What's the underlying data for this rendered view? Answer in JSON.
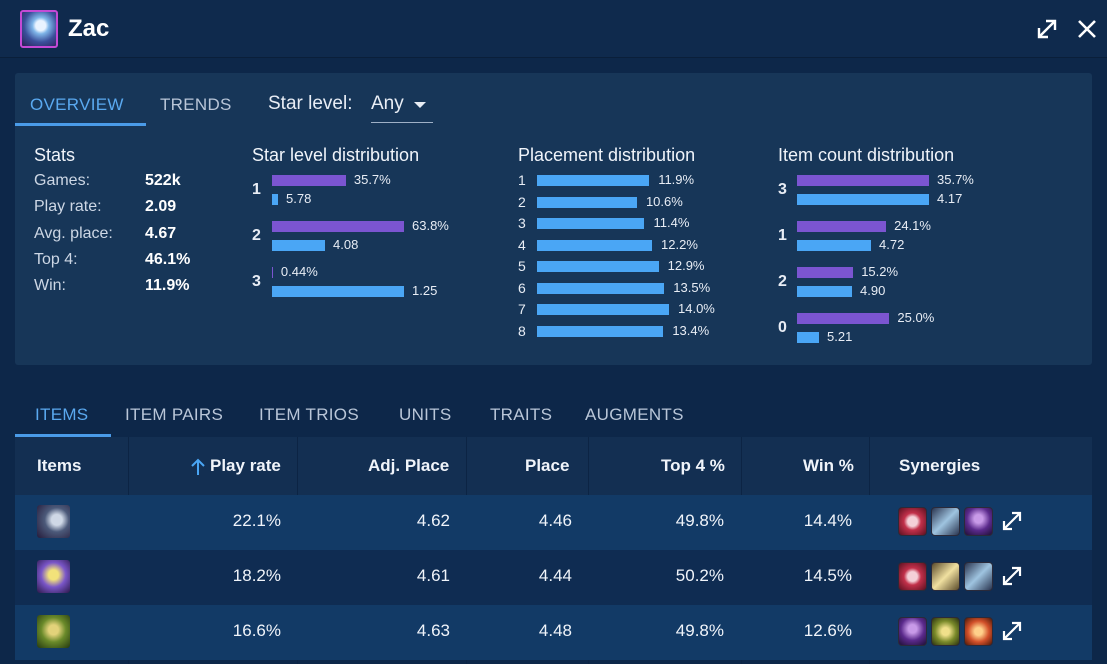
{
  "header": {
    "champion": "Zac",
    "expand_icon": "expand-icon",
    "close_icon": "close-icon"
  },
  "overview_tabs": [
    {
      "label": "OVERVIEW",
      "active": true
    },
    {
      "label": "TRENDS",
      "active": false
    }
  ],
  "star_filter": {
    "label": "Star level:",
    "value": "Any"
  },
  "stats": {
    "title": "Stats",
    "rows": [
      {
        "label": "Games:",
        "value": "522k"
      },
      {
        "label": "Play rate:",
        "value": "2.09"
      },
      {
        "label": "Avg. place:",
        "value": "4.67"
      },
      {
        "label": "Top 4:",
        "value": "46.1%"
      },
      {
        "label": "Win:",
        "value": "11.9%"
      }
    ]
  },
  "star_distribution": {
    "title": "Star level distribution",
    "groups": [
      {
        "label": "1",
        "share": 35.7,
        "share_label": "35.7%",
        "avg": 5.78,
        "avg_label": "5.78"
      },
      {
        "label": "2",
        "share": 63.8,
        "share_label": "63.8%",
        "avg": 4.08,
        "avg_label": "4.08"
      },
      {
        "label": "3",
        "share": 0.44,
        "share_label": "0.44%",
        "avg": 1.25,
        "avg_label": "1.25"
      }
    ]
  },
  "placement_distribution": {
    "title": "Placement distribution",
    "rows": [
      {
        "label": "1",
        "value": 11.9,
        "value_label": "11.9%"
      },
      {
        "label": "2",
        "value": 10.6,
        "value_label": "10.6%"
      },
      {
        "label": "3",
        "value": 11.4,
        "value_label": "11.4%"
      },
      {
        "label": "4",
        "value": 12.2,
        "value_label": "12.2%"
      },
      {
        "label": "5",
        "value": 12.9,
        "value_label": "12.9%"
      },
      {
        "label": "6",
        "value": 13.5,
        "value_label": "13.5%"
      },
      {
        "label": "7",
        "value": 14.0,
        "value_label": "14.0%"
      },
      {
        "label": "8",
        "value": 13.4,
        "value_label": "13.4%"
      }
    ]
  },
  "item_count_distribution": {
    "title": "Item count distribution",
    "groups": [
      {
        "label": "3",
        "share": 35.7,
        "share_label": "35.7%",
        "avg": 4.17,
        "avg_label": "4.17"
      },
      {
        "label": "1",
        "share": 24.1,
        "share_label": "24.1%",
        "avg": 4.72,
        "avg_label": "4.72"
      },
      {
        "label": "2",
        "share": 15.2,
        "share_label": "15.2%",
        "avg": 4.9,
        "avg_label": "4.90"
      },
      {
        "label": "0",
        "share": 25.0,
        "share_label": "25.0%",
        "avg": 5.21,
        "avg_label": "5.21"
      }
    ]
  },
  "bottom_tabs": [
    {
      "label": "ITEMS",
      "active": true
    },
    {
      "label": "ITEM PAIRS",
      "active": false
    },
    {
      "label": "ITEM TRIOS",
      "active": false
    },
    {
      "label": "UNITS",
      "active": false
    },
    {
      "label": "TRAITS",
      "active": false
    },
    {
      "label": "AUGMENTS",
      "active": false
    }
  ],
  "table": {
    "columns": [
      "Items",
      "Play rate",
      "Adj. Place",
      "Place",
      "Top 4 %",
      "Win %",
      "Synergies"
    ],
    "sort_icon": "arrow-up-icon",
    "rows": [
      {
        "item_icon": "item-icon-1",
        "play_rate": "22.1%",
        "adj_place": "4.62",
        "place": "4.46",
        "top4": "49.8%",
        "win": "14.4%",
        "synergy_icons": [
          "heart-icon",
          "crystal-icon",
          "purple-champion-icon"
        ]
      },
      {
        "item_icon": "item-icon-2",
        "play_rate": "18.2%",
        "adj_place": "4.61",
        "place": "4.44",
        "top4": "50.2%",
        "win": "14.5%",
        "synergy_icons": [
          "heart-icon",
          "gold-crystal-icon",
          "crystal-icon"
        ]
      },
      {
        "item_icon": "item-icon-3",
        "play_rate": "16.6%",
        "adj_place": "4.63",
        "place": "4.48",
        "top4": "49.8%",
        "win": "12.6%",
        "synergy_icons": [
          "purple-champion-icon",
          "green-gold-icon",
          "fire-icon"
        ]
      }
    ]
  },
  "colors": {
    "background": "#0d2749",
    "panel": "#173658",
    "accent": "#5aa9f0",
    "bar_purple": "#7b55d1",
    "bar_blue": "#4aa6f5"
  }
}
